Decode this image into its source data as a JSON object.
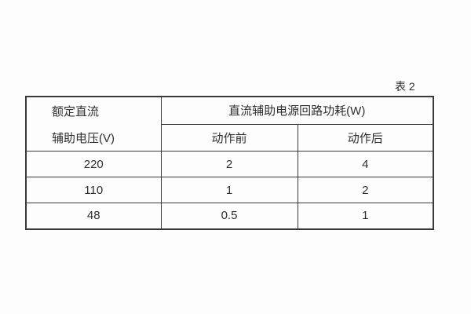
{
  "caption": "表 2",
  "table": {
    "header": {
      "rated_line1": "额定直流",
      "rated_line2": "辅助电压(V)",
      "group_title": "直流辅助电源回路功耗(W)",
      "before_label": "动作前",
      "after_label": "动作后"
    },
    "rows": [
      {
        "voltage": "220",
        "before": "2",
        "after": "4"
      },
      {
        "voltage": "110",
        "before": "1",
        "after": "2"
      },
      {
        "voltage": "48",
        "before": "0.5",
        "after": "1"
      }
    ]
  },
  "colors": {
    "background": "#fdfdfd",
    "border": "#3a3a3a",
    "text": "#2e2e2e"
  }
}
